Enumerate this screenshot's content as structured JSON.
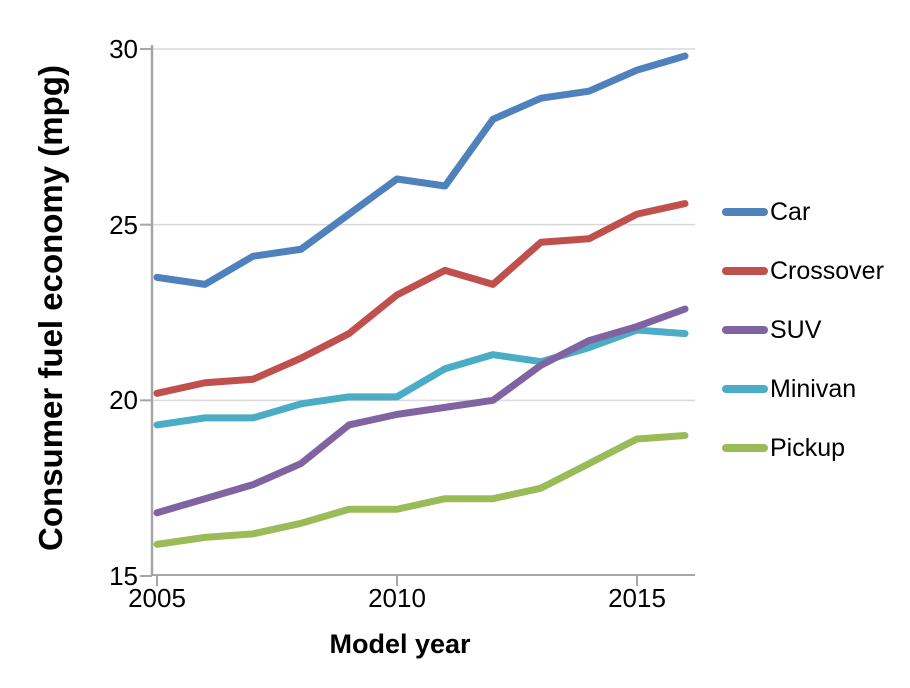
{
  "chart_data": {
    "type": "line",
    "title": "",
    "xlabel": "Model year",
    "ylabel": "Consumer fuel economy (mpg)",
    "x": [
      2005,
      2006,
      2007,
      2008,
      2009,
      2010,
      2011,
      2012,
      2013,
      2014,
      2015,
      2016
    ],
    "xticks": [
      2005,
      2010,
      2015
    ],
    "yticks": [
      15,
      20,
      25,
      30
    ],
    "xlim": [
      2005,
      2016
    ],
    "ylim": [
      15,
      30
    ],
    "grid": "horizontal-only",
    "legend_position": "right-outside",
    "axis_color": "#a6a6a6",
    "gridline_color": "#d9d9d9",
    "series": [
      {
        "name": "Car",
        "color": "#4F81BD",
        "values": [
          23.5,
          23.3,
          24.1,
          24.3,
          25.3,
          26.3,
          26.1,
          28.0,
          28.6,
          28.8,
          29.4,
          29.8
        ]
      },
      {
        "name": "Crossover",
        "color": "#C0504D",
        "values": [
          20.2,
          20.5,
          20.6,
          21.2,
          21.9,
          23.0,
          23.7,
          23.3,
          24.5,
          24.6,
          25.3,
          25.6
        ]
      },
      {
        "name": "SUV",
        "color": "#8064A2",
        "values": [
          16.8,
          17.2,
          17.6,
          18.2,
          19.3,
          19.6,
          19.8,
          20.0,
          21.0,
          21.7,
          22.1,
          22.6
        ]
      },
      {
        "name": "Minivan",
        "color": "#4BACC6",
        "values": [
          19.3,
          19.5,
          19.5,
          19.9,
          20.1,
          20.1,
          20.9,
          21.3,
          21.1,
          21.5,
          22.0,
          21.9
        ]
      },
      {
        "name": "Pickup",
        "color": "#9BBB59",
        "values": [
          15.9,
          16.1,
          16.2,
          16.5,
          16.9,
          16.9,
          17.2,
          17.2,
          17.5,
          18.2,
          18.9,
          19.0
        ]
      }
    ]
  }
}
